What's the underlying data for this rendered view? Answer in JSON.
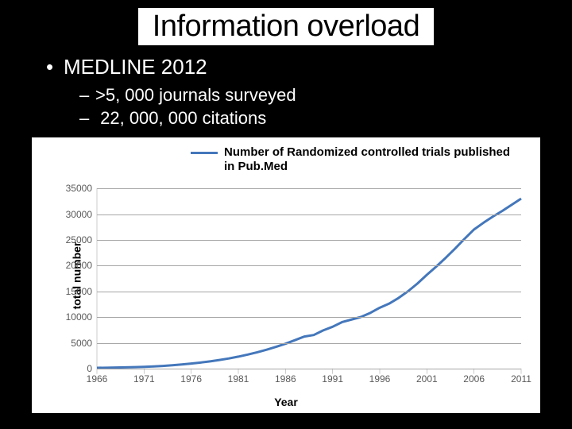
{
  "slide": {
    "background": "#000000",
    "title": "Information overload",
    "title_fontsize": 38,
    "title_bg": "#ffffff",
    "title_color": "#000000",
    "bullet1": "MEDLINE 2012",
    "bullet2a": ">5, 000 journals surveyed",
    "bullet2b": "22, 000, 000 citations",
    "bullet_color": "#ffffff"
  },
  "chart": {
    "type": "line",
    "panel_bg": "#ffffff",
    "legend_label": "Number of Randomized controlled trials published in Pub.Med",
    "legend_color": "#4477bb",
    "legend_fontsize": 15,
    "ylabel": "total number",
    "xlabel": "Year",
    "label_fontsize": 14,
    "tick_fontsize": 12,
    "tick_color": "#595959",
    "grid_color": "#a6a6a6",
    "axis_color": "#808080",
    "line_color": "#4477bb",
    "line_width": 3,
    "ylim": [
      0,
      35000
    ],
    "ytick_step": 5000,
    "yticks": [
      0,
      5000,
      10000,
      15000,
      20000,
      25000,
      30000,
      35000
    ],
    "xlim": [
      1966,
      2011
    ],
    "xtick_step": 5,
    "xticks": [
      1966,
      1971,
      1976,
      1981,
      1986,
      1991,
      1996,
      2001,
      2006,
      2011
    ],
    "series": {
      "x": [
        1966,
        1967,
        1968,
        1969,
        1970,
        1971,
        1972,
        1973,
        1974,
        1975,
        1976,
        1977,
        1978,
        1979,
        1980,
        1981,
        1982,
        1983,
        1984,
        1985,
        1986,
        1987,
        1988,
        1989,
        1990,
        1991,
        1992,
        1993,
        1994,
        1995,
        1996,
        1997,
        1998,
        1999,
        2000,
        2001,
        2002,
        2003,
        2004,
        2005,
        2006,
        2007,
        2008,
        2009,
        2010,
        2011
      ],
      "y": [
        120,
        150,
        180,
        220,
        260,
        320,
        400,
        500,
        630,
        780,
        950,
        1150,
        1380,
        1650,
        1950,
        2300,
        2700,
        3150,
        3650,
        4200,
        4800,
        5500,
        6200,
        6500,
        7400,
        8100,
        9000,
        9500,
        10000,
        10800,
        11800,
        12600,
        13700,
        15000,
        16500,
        18200,
        19800,
        21500,
        23300,
        25200,
        27000,
        28300,
        29500,
        30600,
        31800,
        33000
      ]
    }
  }
}
